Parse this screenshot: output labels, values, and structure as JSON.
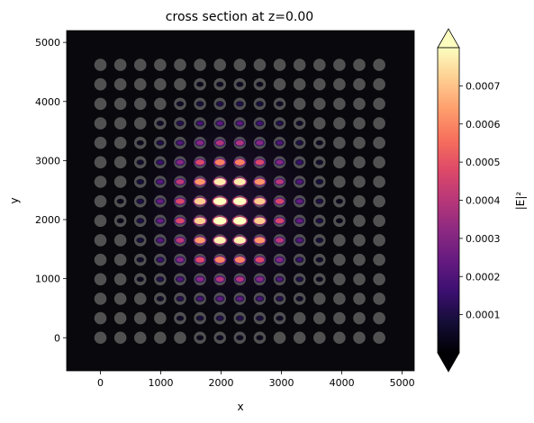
{
  "chart_data": {
    "type": "heatmap",
    "title": "cross section at z=0.00",
    "xlabel": "x",
    "ylabel": "y",
    "xlim": [
      -560,
      5200
    ],
    "ylim": [
      -560,
      5200
    ],
    "x_ticks": [
      0,
      1000,
      2000,
      3000,
      4000,
      5000
    ],
    "y_ticks": [
      0,
      1000,
      2000,
      3000,
      4000,
      5000
    ],
    "grid": false,
    "colormap": "magma",
    "colorbar": {
      "label": "|E|²",
      "range": [
        0,
        0.0008
      ],
      "ticks": [
        0.0001,
        0.0002,
        0.0003,
        0.0004,
        0.0005,
        0.0006,
        0.0007
      ],
      "tick_labels": [
        "0.0001",
        "0.0002",
        "0.0003",
        "0.0004",
        "0.0005",
        "0.0006",
        "0.0007"
      ],
      "extend": "both"
    },
    "lattice": {
      "spacing": 330,
      "count_x": 15,
      "count_y": 15,
      "origin": [
        0,
        0
      ],
      "pillar_color": "#5a5a5a"
    },
    "field": {
      "center": [
        2140,
        2140
      ],
      "sigma_x": 720,
      "sigma_y": 900,
      "peak_intensity": 0.0008
    }
  }
}
